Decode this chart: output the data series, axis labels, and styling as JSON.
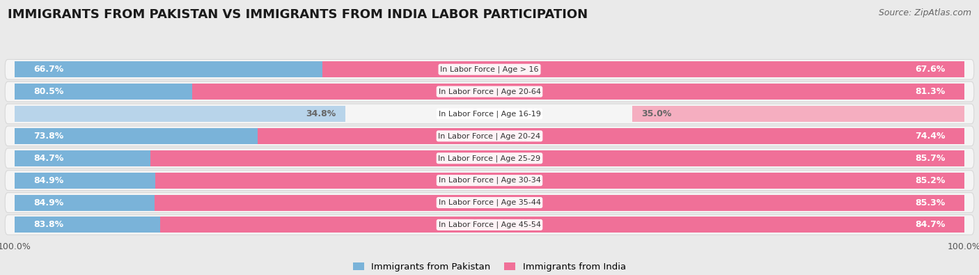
{
  "title": "IMMIGRANTS FROM PAKISTAN VS IMMIGRANTS FROM INDIA LABOR PARTICIPATION",
  "source": "Source: ZipAtlas.com",
  "categories": [
    "In Labor Force | Age > 16",
    "In Labor Force | Age 20-64",
    "In Labor Force | Age 16-19",
    "In Labor Force | Age 20-24",
    "In Labor Force | Age 25-29",
    "In Labor Force | Age 30-34",
    "In Labor Force | Age 35-44",
    "In Labor Force | Age 45-54"
  ],
  "pakistan_values": [
    66.7,
    80.5,
    34.8,
    73.8,
    84.7,
    84.9,
    84.9,
    83.8
  ],
  "india_values": [
    67.6,
    81.3,
    35.0,
    74.4,
    85.7,
    85.2,
    85.3,
    84.7
  ],
  "pakistan_color": "#7ab3d9",
  "pakistan_color_light": "#b8d4ea",
  "india_color": "#f07098",
  "india_color_light": "#f5aec0",
  "background_color": "#eaeaea",
  "legend_pakistan": "Immigrants from Pakistan",
  "legend_india": "Immigrants from India",
  "bar_height": 0.72,
  "label_fontsize": 9,
  "cat_label_fontsize": 8,
  "title_fontsize": 13,
  "source_fontsize": 9,
  "row_bg_color": "#f5f5f5",
  "row_border_color": "#d8d8d8"
}
